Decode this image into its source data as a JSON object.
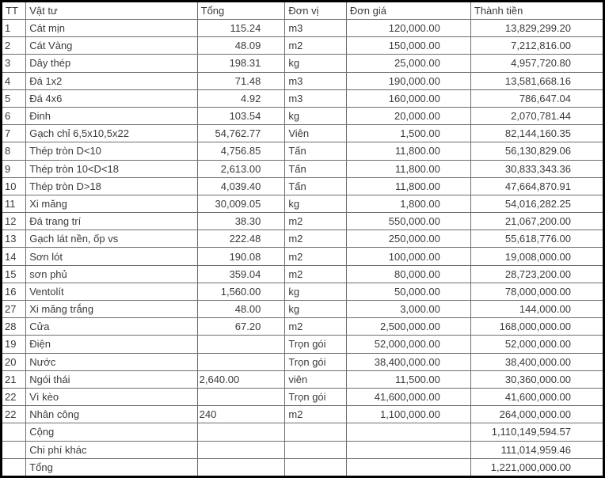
{
  "colors": {
    "outer_border": "#000000",
    "grid_border": "#6f6f6f",
    "text": "#3a3a3a",
    "background": "#ffffff"
  },
  "table": {
    "columns": [
      {
        "key": "tt",
        "label": "TT"
      },
      {
        "key": "name",
        "label": "Vật tư"
      },
      {
        "key": "tong",
        "label": "Tổng"
      },
      {
        "key": "unit",
        "label": "Đơn vị"
      },
      {
        "key": "price",
        "label": "Đơn giá"
      },
      {
        "key": "amount",
        "label": "Thành tiền"
      }
    ],
    "rows": [
      {
        "tt": "1",
        "name": "Cát mịn",
        "tong": "115.24",
        "unit": "m3",
        "price": "120,000.00",
        "amount": "13,829,299.20"
      },
      {
        "tt": "2",
        "name": "Cát Vàng",
        "tong": "48.09",
        "unit": "m2",
        "price": "150,000.00",
        "amount": "7,212,816.00"
      },
      {
        "tt": "3",
        "name": "Dây thép",
        "tong": "198.31",
        "unit": "kg",
        "price": "25,000.00",
        "amount": "4,957,720.80"
      },
      {
        "tt": "4",
        "name": "Đá 1x2",
        "tong": "71.48",
        "unit": "m3",
        "price": "190,000.00",
        "amount": "13,581,668.16"
      },
      {
        "tt": "5",
        "name": "Đá 4x6",
        "tong": "4.92",
        "unit": "m3",
        "price": "160,000.00",
        "amount": "786,647.04"
      },
      {
        "tt": "6",
        "name": "Đinh",
        "tong": "103.54",
        "unit": "kg",
        "price": "20,000.00",
        "amount": "2,070,781.44"
      },
      {
        "tt": "7",
        "name": "Gạch chỉ 6,5x10,5x22",
        "tong": "54,762.77",
        "unit": "Viên",
        "price": "1,500.00",
        "amount": "82,144,160.35"
      },
      {
        "tt": "8",
        "name": "Thép tròn D<10",
        "tong": "4,756.85",
        "unit": "Tấn",
        "price": "11,800.00",
        "amount": "56,130,829.06"
      },
      {
        "tt": "9",
        "name": "Thép tròn 10<D<18",
        "tong": "2,613.00",
        "unit": "Tấn",
        "price": "11,800.00",
        "amount": "30,833,343.36"
      },
      {
        "tt": "10",
        "name": "Thép tròn D>18",
        "tong": "4,039.40",
        "unit": "Tấn",
        "price": "11,800.00",
        "amount": "47,664,870.91"
      },
      {
        "tt": "11",
        "name": "Xi măng",
        "tong": "30,009.05",
        "unit": "kg",
        "price": "1,800.00",
        "amount": "54,016,282.25"
      },
      {
        "tt": "12",
        "name": "Đá trang trí",
        "tong": "38.30",
        "unit": "m2",
        "price": "550,000.00",
        "amount": "21,067,200.00"
      },
      {
        "tt": "13",
        "name": "Gạch lát nền, ốp vs",
        "tong": "222.48",
        "unit": "m2",
        "price": "250,000.00",
        "amount": "55,618,776.00"
      },
      {
        "tt": "14",
        "name": "Sơn lót",
        "tong": "190.08",
        "unit": "m2",
        "price": "100,000.00",
        "amount": "19,008,000.00"
      },
      {
        "tt": "15",
        "name": "sơn phủ",
        "tong": "359.04",
        "unit": "m2",
        "price": "80,000.00",
        "amount": "28,723,200.00"
      },
      {
        "tt": "16",
        "name": "Ventolít",
        "tong": "1,560.00",
        "unit": "kg",
        "price": "50,000.00",
        "amount": "78,000,000.00"
      },
      {
        "tt": "27",
        "name": "Xi măng trắng",
        "tong": "48.00",
        "unit": "kg",
        "price": "3,000.00",
        "amount": "144,000.00"
      },
      {
        "tt": "28",
        "name": "Cửa",
        "tong": "67.20",
        "unit": "m2",
        "price": "2,500,000.00",
        "amount": "168,000,000.00"
      },
      {
        "tt": "19",
        "name": "Điện",
        "tong": "",
        "unit": "Trọn gói",
        "price": "52,000,000.00",
        "amount": "52,000,000.00"
      },
      {
        "tt": "20",
        "name": "Nước",
        "tong": "",
        "unit": "Trọn gói",
        "price": "38,400,000.00",
        "amount": "38,400,000.00"
      },
      {
        "tt": "21",
        "name": "Ngói thái",
        "tong": "2,640.00",
        "unit": "viên",
        "price": "11,500.00",
        "amount": "30,360,000.00",
        "tong_align": "left"
      },
      {
        "tt": "22",
        "name": "Vì kèo",
        "tong": "",
        "unit": "Trọn gói",
        "price": "41,600,000.00",
        "amount": "41,600,000.00"
      },
      {
        "tt": "22",
        "name": "Nhân công",
        "tong": "240",
        "unit": "m2",
        "price": "1,100,000.00",
        "amount": "264,000,000.00",
        "tong_align": "left"
      },
      {
        "tt": "",
        "name": "Cộng",
        "tong": "",
        "unit": "",
        "price": "",
        "amount": "1,110,149,594.57",
        "summary": true
      },
      {
        "tt": "",
        "name": "Chi phí khác",
        "tong": "",
        "unit": "",
        "price": "",
        "amount": "111,014,959.46",
        "summary": true
      },
      {
        "tt": "",
        "name": "Tổng",
        "tong": "",
        "unit": "",
        "price": "",
        "amount": "1,221,000,000.00",
        "summary": true
      }
    ]
  }
}
